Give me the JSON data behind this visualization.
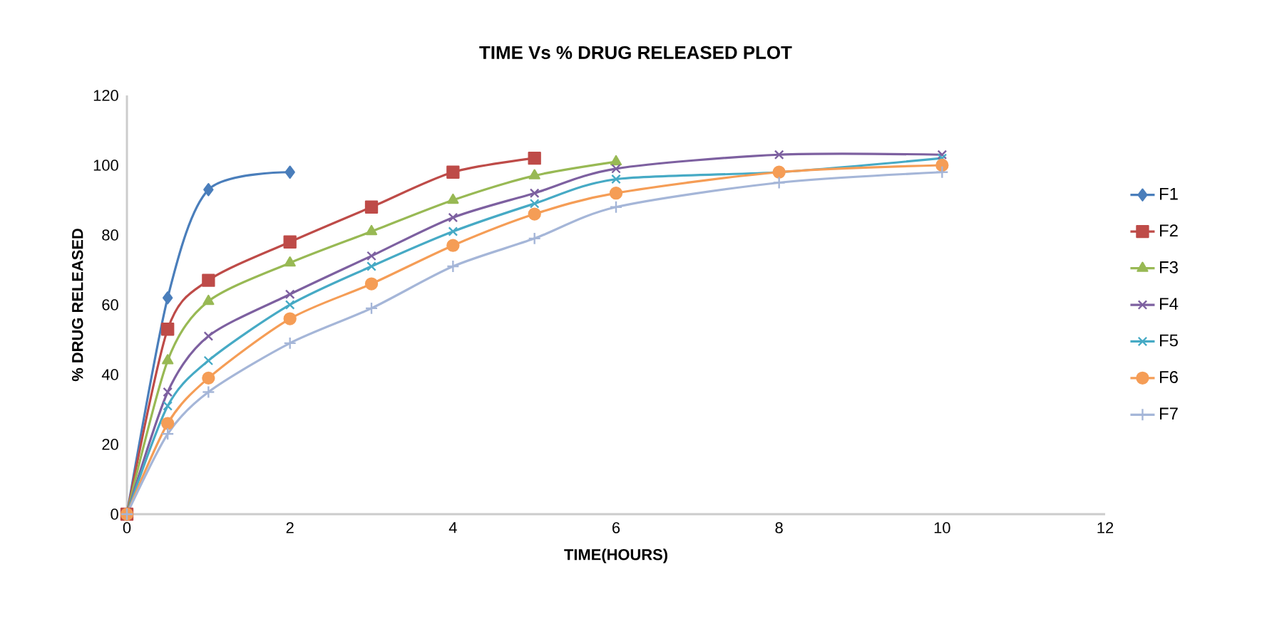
{
  "chart_data": {
    "type": "line",
    "title": "TIME Vs % DRUG RELEASED PLOT",
    "xlabel": "TIME(HOURS)",
    "ylabel": "% DRUG RELEASED",
    "xlim": [
      0,
      12
    ],
    "xticks": [
      0,
      2,
      4,
      6,
      8,
      10,
      12
    ],
    "ylim": [
      0,
      120
    ],
    "yticks": [
      0,
      20,
      40,
      60,
      80,
      100,
      120
    ],
    "grid": false,
    "legend": "right",
    "line_style": "solid",
    "series": [
      {
        "name": "F1",
        "color": "#4a7ebb",
        "marker": "diamond",
        "x": [
          0,
          0.5,
          1,
          2
        ],
        "values": [
          0,
          62,
          93,
          98
        ]
      },
      {
        "name": "F2",
        "color": "#be4b48",
        "marker": "square",
        "x": [
          0,
          0.5,
          1,
          2,
          3,
          4,
          5
        ],
        "values": [
          0,
          53,
          67,
          78,
          88,
          98,
          102
        ]
      },
      {
        "name": "F3",
        "color": "#98b954",
        "marker": "triangle",
        "x": [
          0,
          0.5,
          1,
          2,
          3,
          4,
          5,
          6
        ],
        "values": [
          0,
          44,
          61,
          72,
          81,
          90,
          97,
          101
        ]
      },
      {
        "name": "F4",
        "color": "#7d60a0",
        "marker": "cross",
        "x": [
          0,
          0.5,
          1,
          2,
          3,
          4,
          5,
          6,
          8,
          10
        ],
        "values": [
          0,
          35,
          51,
          63,
          74,
          85,
          92,
          99,
          103,
          103
        ]
      },
      {
        "name": "F5",
        "color": "#46aac5",
        "marker": "cross",
        "x": [
          0,
          0.5,
          1,
          2,
          3,
          4,
          5,
          6,
          8,
          10
        ],
        "values": [
          0,
          31,
          44,
          60,
          71,
          81,
          89,
          96,
          98,
          102
        ]
      },
      {
        "name": "F6",
        "color": "#f59d56",
        "marker": "circle",
        "x": [
          0,
          0.5,
          1,
          2,
          3,
          4,
          5,
          6,
          8,
          10
        ],
        "values": [
          0,
          26,
          39,
          56,
          66,
          77,
          86,
          92,
          98,
          100
        ]
      },
      {
        "name": "F7",
        "color": "#a5b6d8",
        "marker": "plus",
        "x": [
          0,
          0.5,
          1,
          2,
          3,
          4,
          5,
          6,
          8,
          10
        ],
        "values": [
          0,
          23,
          35,
          49,
          59,
          71,
          79,
          88,
          95,
          98
        ]
      }
    ]
  }
}
